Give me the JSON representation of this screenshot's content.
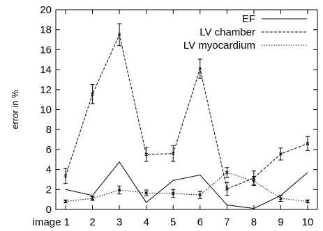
{
  "chart_data": {
    "type": "line",
    "title": "",
    "xlabel": "",
    "ylabel": "error in %",
    "categories": [
      "image 1",
      "2",
      "3",
      "4",
      "5",
      "6",
      "7",
      "8",
      "9",
      "10"
    ],
    "x": [
      1,
      2,
      3,
      4,
      5,
      6,
      7,
      8,
      9,
      10
    ],
    "ylim": [
      0,
      20
    ],
    "yticks": [
      "0",
      "2",
      "4",
      "6",
      "8",
      "10",
      "12",
      "14",
      "16",
      "18",
      "20"
    ],
    "grid": false,
    "legend": "top-right",
    "series": [
      {
        "name": "EF",
        "line_style": "solid",
        "values": [
          2.0,
          1.4,
          4.75,
          0.7,
          2.9,
          3.45,
          0.45,
          0.1,
          1.4,
          3.7
        ],
        "error": null
      },
      {
        "name": "LV chamber",
        "line_style": "dashed",
        "values": [
          3.35,
          11.55,
          17.5,
          5.5,
          5.6,
          14.1,
          2.05,
          3.15,
          5.55,
          6.6
        ],
        "error": [
          0.75,
          0.95,
          1.1,
          0.7,
          0.8,
          0.95,
          0.65,
          0.7,
          0.6,
          0.7
        ]
      },
      {
        "name": "LV myocardium",
        "line_style": "dotted",
        "values": [
          0.8,
          1.1,
          1.95,
          1.65,
          1.6,
          1.45,
          3.7,
          2.85,
          1.1,
          0.8
        ],
        "error": [
          0.15,
          0.2,
          0.4,
          0.3,
          0.4,
          0.35,
          0.5,
          0.45,
          0.3,
          0.15
        ]
      }
    ]
  }
}
